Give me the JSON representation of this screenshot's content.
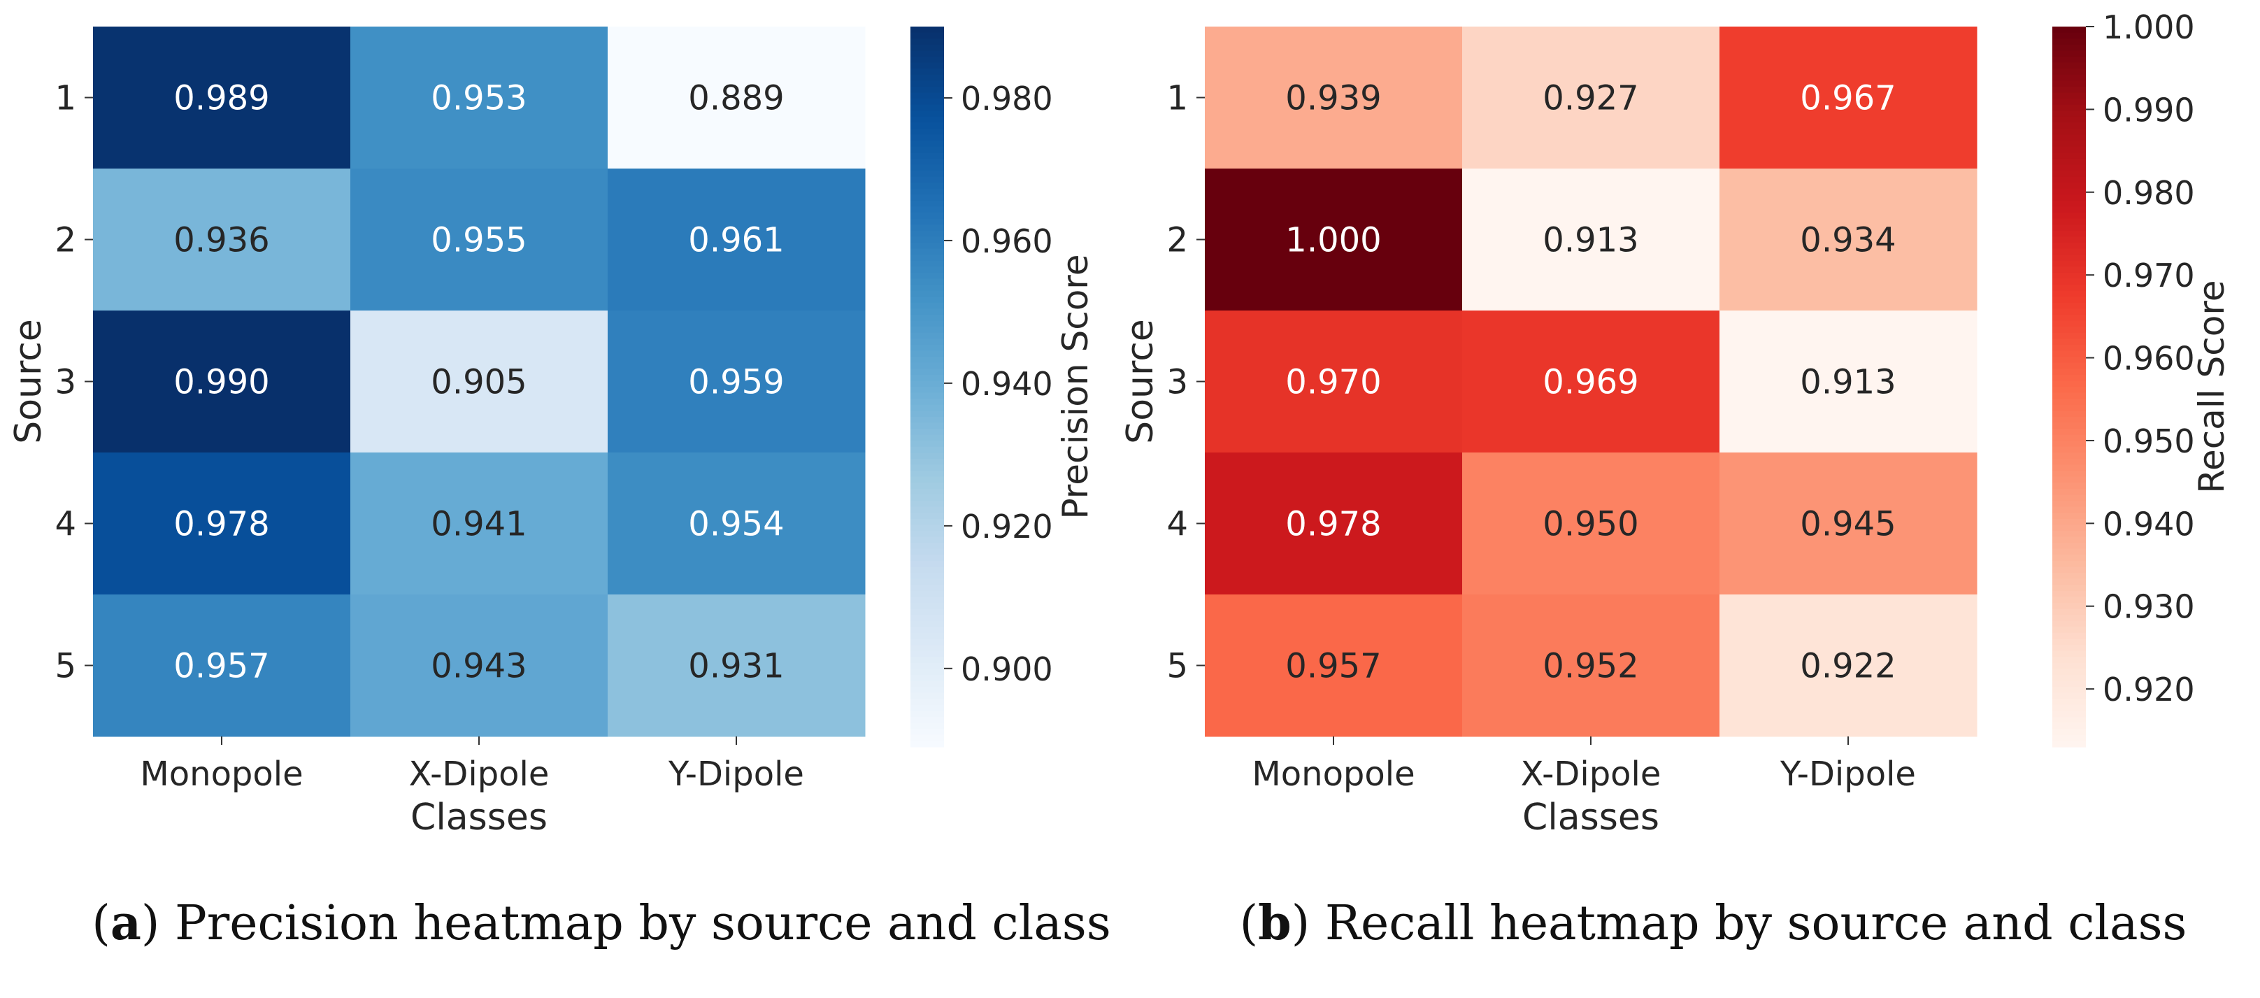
{
  "chart_data": [
    {
      "type": "heatmap",
      "panel_label": "a",
      "caption": "Precision heatmap by source and class",
      "xlabel": "Classes",
      "ylabel": "Source",
      "colorbar_label": "Precision Score",
      "colormap": "Blues",
      "x_categories": [
        "Monopole",
        "X-Dipole",
        "Y-Dipole"
      ],
      "y_categories": [
        "1",
        "2",
        "3",
        "4",
        "5"
      ],
      "values": [
        [
          0.989,
          0.953,
          0.889
        ],
        [
          0.936,
          0.955,
          0.961
        ],
        [
          0.99,
          0.905,
          0.959
        ],
        [
          0.978,
          0.941,
          0.954
        ],
        [
          0.957,
          0.943,
          0.931
        ]
      ],
      "colorbar_range": [
        0.889,
        0.99
      ],
      "colorbar_ticks": [
        0.98,
        0.96,
        0.94,
        0.92,
        0.9
      ],
      "colorbar_tick_labels": [
        "0.980",
        "0.960",
        "0.940",
        "0.920",
        "0.900"
      ]
    },
    {
      "type": "heatmap",
      "panel_label": "b",
      "caption": "Recall heatmap by source and class",
      "xlabel": "Classes",
      "ylabel": "Source",
      "colorbar_label": "Recall Score",
      "colormap": "Reds",
      "x_categories": [
        "Monopole",
        "X-Dipole",
        "Y-Dipole"
      ],
      "y_categories": [
        "1",
        "2",
        "3",
        "4",
        "5"
      ],
      "values": [
        [
          0.939,
          0.927,
          0.967
        ],
        [
          1.0,
          0.913,
          0.934
        ],
        [
          0.97,
          0.969,
          0.913
        ],
        [
          0.978,
          0.95,
          0.945
        ],
        [
          0.957,
          0.952,
          0.922
        ]
      ],
      "colorbar_range": [
        0.913,
        1.0
      ],
      "colorbar_ticks": [
        1.0,
        0.99,
        0.98,
        0.97,
        0.96,
        0.95,
        0.94,
        0.93,
        0.92
      ],
      "colorbar_tick_labels": [
        "1.000",
        "0.990",
        "0.980",
        "0.970",
        "0.960",
        "0.950",
        "0.940",
        "0.930",
        "0.920"
      ]
    }
  ]
}
